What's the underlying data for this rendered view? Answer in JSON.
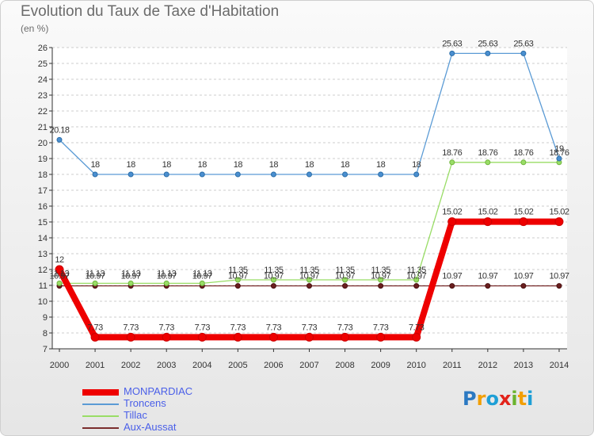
{
  "header": {
    "title": "Evolution du Taux de Taxe d'Habitation",
    "subtitle": "(en %)"
  },
  "logo": {
    "text": "Proxiti"
  },
  "chart_data": {
    "type": "line",
    "title": "Evolution du Taux de Taxe d'Habitation",
    "ylabel": "(en %)",
    "xlabel": "",
    "x": [
      2000,
      2001,
      2002,
      2003,
      2004,
      2005,
      2006,
      2007,
      2008,
      2009,
      2010,
      2011,
      2012,
      2013,
      2014
    ],
    "ylim": [
      7,
      26
    ],
    "yticks": [
      7,
      8,
      9,
      10,
      11,
      12,
      13,
      14,
      15,
      16,
      17,
      18,
      19,
      20,
      21,
      22,
      23,
      24,
      25,
      26
    ],
    "grid": "horizontal dashed",
    "legend_position": "bottom-left",
    "series": [
      {
        "name": "MONPARDIAC",
        "color": "#ee0000",
        "values": [
          12,
          7.73,
          7.73,
          7.73,
          7.73,
          7.73,
          7.73,
          7.73,
          7.73,
          7.73,
          7.73,
          15.02,
          15.02,
          15.02,
          15.02
        ],
        "labels": [
          "12",
          "7.73",
          "7.73",
          "7.73",
          "7.73",
          "7.73",
          "7.73",
          "7.73",
          "7.73",
          "7.73",
          "7.73",
          "15.02",
          "15.02",
          "15.02",
          "15.02"
        ]
      },
      {
        "name": "Troncens",
        "color": "#5b9bd5",
        "values": [
          20.18,
          18,
          18,
          18,
          18,
          18,
          18,
          18,
          18,
          18,
          18,
          25.63,
          25.63,
          25.63,
          19
        ],
        "labels": [
          "20.18",
          "18",
          "18",
          "18",
          "18",
          "18",
          "18",
          "18",
          "18",
          "18",
          "18",
          "25.63",
          "25.63",
          "25.63",
          "19"
        ]
      },
      {
        "name": "Tillac",
        "color": "#99dd66",
        "values": [
          11.13,
          11.13,
          11.13,
          11.13,
          11.13,
          11.35,
          11.35,
          11.35,
          11.35,
          11.35,
          11.35,
          18.76,
          18.76,
          18.76,
          18.76
        ],
        "labels": [
          "11.13",
          "11.13",
          "11.13",
          "11.13",
          "11.13",
          "11.35",
          "11.35",
          "11.35",
          "11.35",
          "11.35",
          "11.35",
          "18.76",
          "18.76",
          "18.76",
          "18.76"
        ]
      },
      {
        "name": "Aux-Aussat",
        "color": "#7a2e2e",
        "values": [
          10.97,
          10.97,
          10.97,
          10.97,
          10.97,
          10.97,
          10.97,
          10.97,
          10.97,
          10.97,
          10.97,
          10.97,
          10.97,
          10.97,
          10.97
        ],
        "labels": [
          "10.97",
          "10.97",
          "10.97",
          "10.97",
          "10.97",
          "10.97",
          "10.97",
          "10.97",
          "10.97",
          "10.97",
          "10.97",
          "10.97",
          "10.97",
          "10.97",
          "10.97"
        ]
      }
    ]
  }
}
